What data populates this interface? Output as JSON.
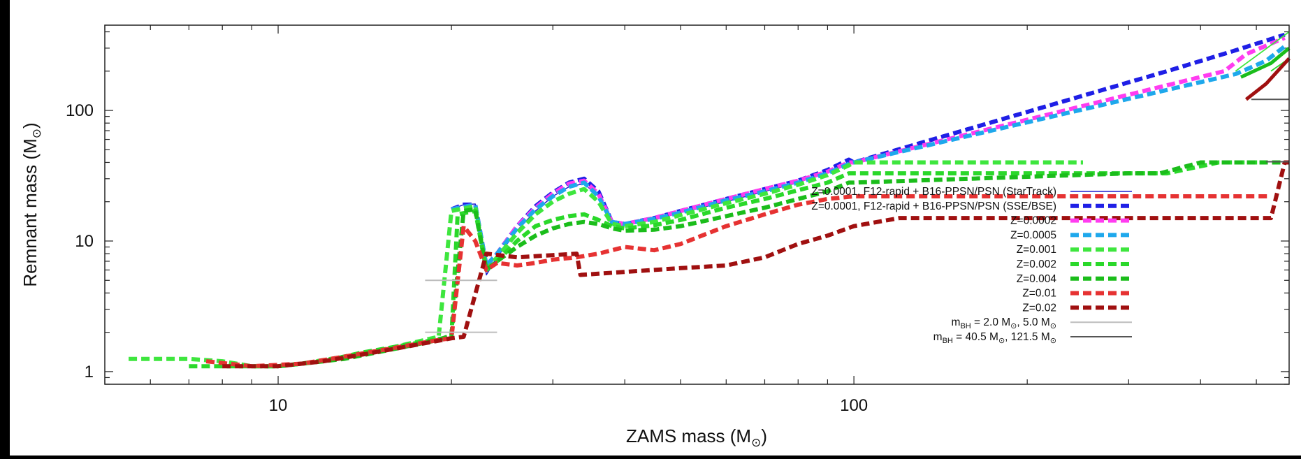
{
  "chart_data": {
    "type": "line",
    "xlabel": "ZAMS mass (M",
    "xlabel_sub": "⊙",
    "xlabel_close": ")",
    "ylabel": "Remnant mass (M",
    "ylabel_sub": "⊙",
    "ylabel_close": ")",
    "xscale": "log",
    "yscale": "log",
    "xlim": [
      5,
      570
    ],
    "ylim": [
      0.8,
      450
    ],
    "xticks": [
      {
        "v": 10,
        "label": "10"
      },
      {
        "v": 100,
        "label": "100"
      }
    ],
    "yticks": [
      {
        "v": 1,
        "label": "1"
      },
      {
        "v": 10,
        "label": "10"
      },
      {
        "v": 100,
        "label": "100"
      }
    ],
    "legend_position": "right",
    "series": [
      {
        "name": "Z=0.0001, F12-rapid + B16-PPSN/PSN (StarTrack)",
        "color": "#1f1fcf",
        "dash": false,
        "width": 1.5,
        "points": [
          [
            20,
            17.5
          ],
          [
            21,
            19
          ],
          [
            22,
            19.2
          ],
          [
            23,
            5.5
          ],
          [
            24,
            7.5
          ],
          [
            26,
            12
          ],
          [
            28,
            17
          ],
          [
            30,
            22
          ],
          [
            32,
            26
          ],
          [
            34,
            27.5
          ],
          [
            36,
            22
          ],
          [
            38,
            14
          ],
          [
            40,
            13.5
          ],
          [
            45,
            14.5
          ],
          [
            50,
            16.5
          ],
          [
            60,
            20
          ],
          [
            70,
            24
          ],
          [
            80,
            28
          ],
          [
            90,
            34
          ],
          [
            98,
            40
          ],
          [
            100,
            40
          ]
        ]
      },
      {
        "name": "Z=0.0001, F12-rapid + B16-PPSN/PSN (SSE/BSE)",
        "color": "#1f1fe6",
        "dash": true,
        "width": 6,
        "points": [
          [
            20,
            17.5
          ],
          [
            21,
            19
          ],
          [
            22,
            19
          ],
          [
            23,
            6.5
          ],
          [
            24,
            8
          ],
          [
            26,
            13
          ],
          [
            28,
            18.5
          ],
          [
            30,
            23.5
          ],
          [
            32,
            28
          ],
          [
            34,
            30
          ],
          [
            36,
            24
          ],
          [
            38,
            14
          ],
          [
            40,
            13.5
          ],
          [
            45,
            15
          ],
          [
            50,
            17
          ],
          [
            60,
            21
          ],
          [
            70,
            25
          ],
          [
            80,
            29
          ],
          [
            90,
            35
          ],
          [
            98,
            42
          ],
          [
            100,
            40
          ],
          [
            350,
            200
          ],
          [
            450,
            280
          ],
          [
            560,
            380
          ]
        ]
      },
      {
        "name": "Z=0.0002",
        "color": "#ff3cf0",
        "dash": true,
        "width": 6,
        "points": [
          [
            20,
            17.5
          ],
          [
            22,
            19
          ],
          [
            23,
            6.5
          ],
          [
            24,
            8
          ],
          [
            26,
            13
          ],
          [
            28,
            18
          ],
          [
            30,
            23
          ],
          [
            32,
            27.5
          ],
          [
            34,
            29
          ],
          [
            36,
            23
          ],
          [
            38,
            14
          ],
          [
            40,
            13.5
          ],
          [
            45,
            15
          ],
          [
            50,
            17
          ],
          [
            60,
            21
          ],
          [
            70,
            25
          ],
          [
            80,
            29
          ],
          [
            90,
            34
          ],
          [
            98,
            40
          ],
          [
            100,
            40
          ],
          [
            440,
            200
          ],
          [
            480,
            270
          ],
          [
            560,
            360
          ]
        ]
      },
      {
        "name": "Z=0.0005",
        "color": "#1ea8ec",
        "dash": true,
        "width": 6,
        "points": [
          [
            20,
            17.5
          ],
          [
            22,
            19
          ],
          [
            23,
            6.5
          ],
          [
            24,
            8
          ],
          [
            26,
            12.5
          ],
          [
            28,
            17.5
          ],
          [
            30,
            22
          ],
          [
            32,
            26
          ],
          [
            34,
            28
          ],
          [
            36,
            22
          ],
          [
            38,
            14
          ],
          [
            40,
            13.5
          ],
          [
            45,
            14.8
          ],
          [
            50,
            16.5
          ],
          [
            60,
            20.5
          ],
          [
            70,
            24
          ],
          [
            80,
            28
          ],
          [
            90,
            33
          ],
          [
            98,
            39
          ],
          [
            100,
            40
          ],
          [
            460,
            190
          ],
          [
            520,
            240
          ],
          [
            560,
            310
          ]
        ]
      },
      {
        "name": "Z=0.001",
        "color": "#3ee63e",
        "dash": true,
        "width": 6,
        "points": [
          [
            5.5,
            1.25
          ],
          [
            7,
            1.25
          ],
          [
            8,
            1.2
          ],
          [
            9,
            1.1
          ],
          [
            10,
            1.1
          ],
          [
            11,
            1.15
          ],
          [
            13,
            1.3
          ],
          [
            15,
            1.45
          ],
          [
            17,
            1.65
          ],
          [
            19,
            1.85
          ],
          [
            20,
            17
          ],
          [
            22,
            18.5
          ],
          [
            23,
            6
          ],
          [
            24,
            7.5
          ],
          [
            26,
            11.5
          ],
          [
            28,
            16
          ],
          [
            30,
            20
          ],
          [
            32,
            23
          ],
          [
            34,
            25
          ],
          [
            36,
            20
          ],
          [
            38,
            13.5
          ],
          [
            40,
            13
          ],
          [
            45,
            14
          ],
          [
            50,
            15.8
          ],
          [
            60,
            19.5
          ],
          [
            70,
            23
          ],
          [
            80,
            27
          ],
          [
            90,
            32
          ],
          [
            98,
            38
          ],
          [
            100,
            40
          ],
          [
            250,
            40
          ]
        ]
      },
      {
        "name": "Z=0.002",
        "color": "#2ad82a",
        "dash": true,
        "width": 6,
        "points": [
          [
            7,
            1.1
          ],
          [
            8,
            1.1
          ],
          [
            10,
            1.1
          ],
          [
            12,
            1.2
          ],
          [
            14,
            1.4
          ],
          [
            16,
            1.55
          ],
          [
            18,
            1.7
          ],
          [
            20,
            1.85
          ],
          [
            20.5,
            16
          ],
          [
            22,
            17
          ],
          [
            23,
            6
          ],
          [
            24,
            7
          ],
          [
            26,
            10
          ],
          [
            28,
            13
          ],
          [
            30,
            14.5
          ],
          [
            32,
            15.5
          ],
          [
            34,
            16
          ],
          [
            36,
            14.5
          ],
          [
            38,
            13
          ],
          [
            40,
            12.5
          ],
          [
            45,
            13.2
          ],
          [
            50,
            14.5
          ],
          [
            60,
            18
          ],
          [
            70,
            21
          ],
          [
            80,
            24.5
          ],
          [
            90,
            28
          ],
          [
            98,
            33
          ],
          [
            100,
            33
          ],
          [
            350,
            33
          ],
          [
            430,
            40
          ],
          [
            520,
            40
          ]
        ]
      },
      {
        "name": "Z=0.004",
        "color": "#1bbd1b",
        "dash": true,
        "width": 6,
        "points": [
          [
            10,
            1.1
          ],
          [
            13,
            1.25
          ],
          [
            16,
            1.5
          ],
          [
            19,
            1.75
          ],
          [
            20,
            1.9
          ],
          [
            21,
            17
          ],
          [
            22,
            17.5
          ],
          [
            23,
            6
          ],
          [
            24,
            7
          ],
          [
            26,
            9
          ],
          [
            28,
            11
          ],
          [
            30,
            12.5
          ],
          [
            32,
            13.5
          ],
          [
            34,
            14
          ],
          [
            36,
            13.5
          ],
          [
            38,
            12.5
          ],
          [
            40,
            12
          ],
          [
            45,
            12.2
          ],
          [
            50,
            13
          ],
          [
            60,
            15.5
          ],
          [
            70,
            18
          ],
          [
            80,
            21
          ],
          [
            90,
            24
          ],
          [
            98,
            28
          ],
          [
            100,
            28
          ],
          [
            300,
            33
          ],
          [
            340,
            33
          ],
          [
            400,
            40
          ],
          [
            560,
            40
          ]
        ]
      },
      {
        "name": "Z=0.01",
        "color": "#e63232",
        "dash": true,
        "width": 6,
        "points": [
          [
            7.5,
            1.2
          ],
          [
            9,
            1.1
          ],
          [
            11,
            1.15
          ],
          [
            13,
            1.3
          ],
          [
            15,
            1.45
          ],
          [
            17,
            1.6
          ],
          [
            19,
            1.75
          ],
          [
            20,
            1.8
          ],
          [
            21,
            13
          ],
          [
            22,
            10
          ],
          [
            23,
            6
          ],
          [
            24,
            6.8
          ],
          [
            26,
            6.5
          ],
          [
            28,
            6.8
          ],
          [
            30,
            7.2
          ],
          [
            33,
            7.5
          ],
          [
            36,
            8
          ],
          [
            40,
            9
          ],
          [
            45,
            8.5
          ],
          [
            50,
            9.5
          ],
          [
            60,
            13
          ],
          [
            70,
            16
          ],
          [
            80,
            19
          ],
          [
            90,
            21
          ],
          [
            100,
            22
          ],
          [
            530,
            22
          ]
        ]
      },
      {
        "name": "Z=0.02",
        "color": "#a01010",
        "dash": true,
        "width": 6,
        "points": [
          [
            8,
            1.1
          ],
          [
            10,
            1.1
          ],
          [
            12,
            1.2
          ],
          [
            14,
            1.35
          ],
          [
            16,
            1.5
          ],
          [
            18,
            1.65
          ],
          [
            20,
            1.8
          ],
          [
            21,
            1.85
          ],
          [
            23,
            8
          ],
          [
            26,
            7.5
          ],
          [
            30,
            7.8
          ],
          [
            33,
            8
          ],
          [
            33.5,
            5.5
          ],
          [
            40,
            5.8
          ],
          [
            50,
            6.2
          ],
          [
            60,
            6.5
          ],
          [
            70,
            7.5
          ],
          [
            80,
            9.5
          ],
          [
            90,
            11
          ],
          [
            100,
            13
          ],
          [
            120,
            15
          ],
          [
            530,
            15
          ],
          [
            560,
            40
          ],
          [
            570,
            40
          ]
        ]
      },
      {
        "name": "m<sub>BH</sub> = 2.0 M<sub>⊙</sub>, 5.0 M<sub>⊙</sub>",
        "color": "#bdbdbd",
        "dash": false,
        "width": 2,
        "segments": [
          [
            [
              18,
              2.0
            ],
            [
              24,
              2.0
            ]
          ],
          [
            [
              18,
              5.0
            ],
            [
              24,
              5.0
            ]
          ]
        ]
      },
      {
        "name": "m<sub>BH</sub> = 40.5 M<sub>⊙</sub>, 121.5 M<sub>⊙</sub>",
        "color": "#555555",
        "dash": false,
        "width": 2,
        "segments": [
          [
            [
              490,
              121.5
            ],
            [
              570,
              121.5
            ]
          ],
          [
            [
              520,
              40.5
            ],
            [
              570,
              40.5
            ]
          ]
        ]
      }
    ],
    "extra_curves": [
      {
        "color": "#2ad82a",
        "width": 1.8,
        "points": [
          [
            530,
            200
          ],
          [
            570,
            250
          ]
        ]
      },
      {
        "color": "#3ee63e",
        "width": 1.8,
        "points": [
          [
            460,
            200
          ],
          [
            570,
            400
          ]
        ]
      },
      {
        "color": "#1bbd1b",
        "width": 5,
        "points": [
          [
            470,
            180
          ],
          [
            530,
            230
          ],
          [
            570,
            300
          ]
        ]
      },
      {
        "color": "#a01010",
        "width": 5,
        "points": [
          [
            480,
            121.5
          ],
          [
            520,
            160
          ],
          [
            570,
            250
          ]
        ]
      }
    ],
    "legend": [
      {
        "text": "Z=0.0001, F12-rapid + B16-PPSN/PSN (StarTrack)",
        "sub": null,
        "color": "#1f1fcf",
        "dash": false,
        "width": 1.5
      },
      {
        "text": "Z=0.0001, F12-rapid + B16-PPSN/PSN (SSE/BSE)",
        "sub": null,
        "color": "#1f1fe6",
        "dash": true,
        "width": 6
      },
      {
        "text": "Z=0.0002",
        "sub": null,
        "color": "#ff3cf0",
        "dash": true,
        "width": 6
      },
      {
        "text": "Z=0.0005",
        "sub": null,
        "color": "#1ea8ec",
        "dash": true,
        "width": 6
      },
      {
        "text": "Z=0.001",
        "sub": null,
        "color": "#3ee63e",
        "dash": true,
        "width": 6
      },
      {
        "text": "Z=0.002",
        "sub": null,
        "color": "#2ad82a",
        "dash": true,
        "width": 6
      },
      {
        "text": "Z=0.004",
        "sub": null,
        "color": "#1bbd1b",
        "dash": true,
        "width": 6
      },
      {
        "text": "Z=0.01",
        "sub": null,
        "color": "#e63232",
        "dash": true,
        "width": 6
      },
      {
        "text": "Z=0.02",
        "sub": null,
        "color": "#a01010",
        "dash": true,
        "width": 6
      },
      {
        "text": "m",
        "sub": "BH",
        "rest": " = 2.0 M",
        "sub2": "⊙",
        "rest2": ", 5.0 M",
        "sub3": "⊙",
        "color": "#bdbdbd",
        "dash": false,
        "width": 2
      },
      {
        "text": "m",
        "sub": "BH",
        "rest": " = 40.5 M",
        "sub2": "⊙",
        "rest2": ", 121.5 M",
        "sub3": "⊙",
        "color": "#555555",
        "dash": false,
        "width": 2
      }
    ]
  }
}
